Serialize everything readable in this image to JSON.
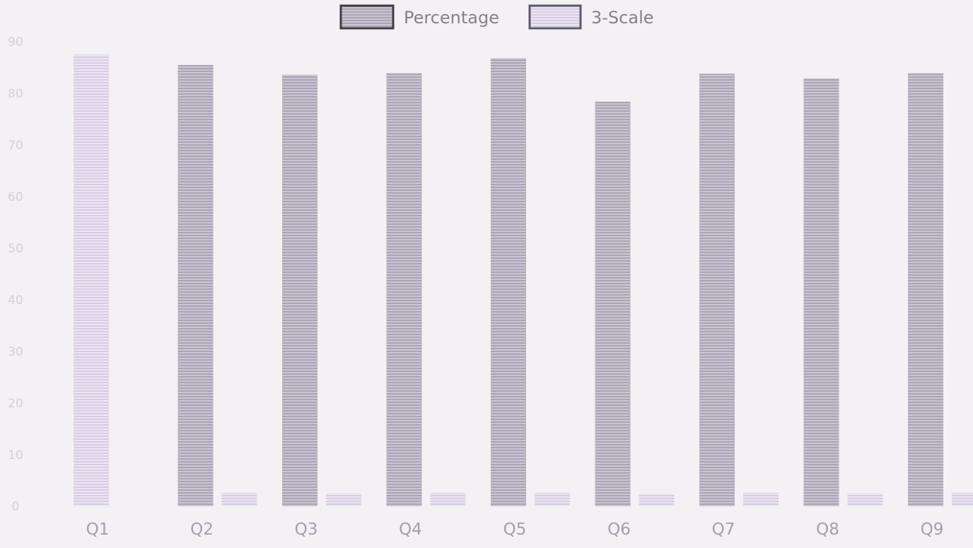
{
  "chart_data": {
    "type": "bar",
    "categories": [
      "Q1",
      "Q2",
      "Q3",
      "Q4",
      "Q5",
      "Q6",
      "Q7",
      "Q8",
      "Q9"
    ],
    "series": [
      {
        "name": "Percentage",
        "values": [
          87.5,
          85.5,
          83.6,
          83.9,
          86.8,
          78.4,
          83.8,
          82.9,
          83.9
        ],
        "color": "#b9b8c0"
      },
      {
        "name": "3-Scale",
        "values": [
          0,
          2.6,
          2.5,
          2.6,
          2.6,
          2.4,
          2.6,
          2.5,
          2.6
        ],
        "color": "#d9cfe6"
      }
    ],
    "ylim": [
      0,
      90
    ],
    "yticks": [
      "0",
      "10",
      "20",
      "30",
      "40",
      "50",
      "60",
      "70",
      "80",
      "90"
    ],
    "title": "",
    "xlabel": "",
    "ylabel": "",
    "grid": false,
    "legend": "top-center"
  }
}
